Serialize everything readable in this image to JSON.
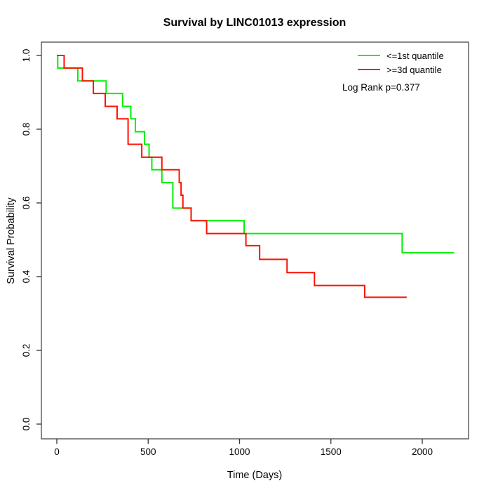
{
  "chart_data": {
    "type": "line",
    "subtype": "kaplan-meier-step",
    "title": "Survival by LINC01013 expression",
    "xlabel": "Time (Days)",
    "ylabel": "Survival Probability",
    "xlim": [
      0,
      2200
    ],
    "ylim": [
      0.0,
      1.0
    ],
    "x_ticks": [
      0,
      500,
      1000,
      1500,
      2000
    ],
    "x_tick_labels": [
      "0",
      "500",
      "1000",
      "1500",
      "2000"
    ],
    "y_ticks": [
      0.0,
      0.2,
      0.4,
      0.6,
      0.8,
      1.0
    ],
    "y_tick_labels": [
      "0.0",
      "0.2",
      "0.4",
      "0.6",
      "0.8",
      "1.0"
    ],
    "grid": false,
    "legend_position": "top-right",
    "annotation": "Log Rank p=0.377",
    "series": [
      {
        "name": "<=1st quantile",
        "color": "#00f000",
        "start": [
          0,
          1.0
        ],
        "steps": [
          [
            5,
            0.966
          ],
          [
            115,
            0.931
          ],
          [
            270,
            0.897
          ],
          [
            360,
            0.862
          ],
          [
            405,
            0.828
          ],
          [
            430,
            0.793
          ],
          [
            480,
            0.759
          ],
          [
            505,
            0.724
          ],
          [
            520,
            0.69
          ],
          [
            575,
            0.655
          ],
          [
            635,
            0.586
          ],
          [
            735,
            0.552
          ],
          [
            1025,
            0.517
          ],
          [
            1890,
            0.465
          ]
        ],
        "end_time": 2175
      },
      {
        "name": ">=3d quantile",
        "color": "#ff1000",
        "start": [
          0,
          1.0
        ],
        "steps": [
          [
            40,
            0.966
          ],
          [
            140,
            0.931
          ],
          [
            200,
            0.897
          ],
          [
            265,
            0.862
          ],
          [
            330,
            0.828
          ],
          [
            390,
            0.759
          ],
          [
            465,
            0.724
          ],
          [
            575,
            0.69
          ],
          [
            670,
            0.655
          ],
          [
            680,
            0.621
          ],
          [
            690,
            0.586
          ],
          [
            735,
            0.552
          ],
          [
            820,
            0.517
          ],
          [
            1035,
            0.484
          ],
          [
            1110,
            0.447
          ],
          [
            1260,
            0.411
          ],
          [
            1410,
            0.376
          ],
          [
            1685,
            0.344
          ]
        ],
        "end_time": 1915
      }
    ]
  }
}
